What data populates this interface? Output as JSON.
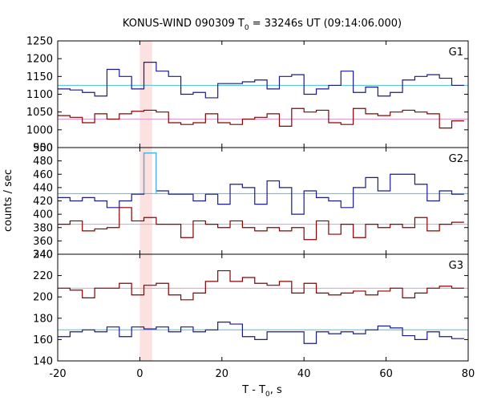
{
  "chart_data": {
    "type": "line",
    "title_main": "KONUS-WIND 090309 T",
    "title_sub": "0",
    "title_rest": " = 33246s UT (09:14:06.000)",
    "xlabel_main": "T - T",
    "xlabel_sub": "0",
    "xlabel_rest": ", s",
    "ylabel": "counts / sec",
    "xlim": [
      -20,
      80
    ],
    "xticks": [
      "-20",
      "0",
      "20",
      "40",
      "60",
      "80"
    ],
    "highlight_band": [
      0,
      3
    ],
    "bin_edges": [
      -20,
      -17,
      -14,
      -11,
      -8,
      -5,
      -2,
      1,
      4,
      7,
      10,
      13,
      16,
      19,
      22,
      25,
      28,
      31,
      34,
      37,
      40,
      43,
      46,
      49,
      52,
      55,
      58,
      61,
      64,
      67,
      70,
      73,
      76,
      79
    ],
    "panels": [
      {
        "label": "G1",
        "ylim": [
          950,
          1250
        ],
        "yticks": [
          "950",
          "1000",
          "1050",
          "1100",
          "1150",
          "1200",
          "1250"
        ],
        "series": [
          {
            "color": "#1a1a8c",
            "values": [
              1115,
              1112,
              1105,
              1095,
              1170,
              1150,
              1115,
              1190,
              1165,
              1150,
              1100,
              1105,
              1090,
              1130,
              1130,
              1135,
              1140,
              1115,
              1150,
              1155,
              1100,
              1115,
              1125,
              1165,
              1105,
              1120,
              1095,
              1105,
              1140,
              1150,
              1155,
              1145,
              1125
            ],
            "fit": 1125,
            "fit_color": "#47c1e0"
          },
          {
            "color": "#8b0000",
            "values": [
              1040,
              1035,
              1020,
              1045,
              1030,
              1045,
              1052,
              1055,
              1050,
              1020,
              1015,
              1020,
              1045,
              1020,
              1015,
              1030,
              1035,
              1045,
              1010,
              1060,
              1050,
              1055,
              1020,
              1015,
              1060,
              1045,
              1040,
              1050,
              1055,
              1050,
              1045,
              1005,
              1025
            ],
            "fit": 1030,
            "fit_color": "#e896d0"
          }
        ]
      },
      {
        "label": "G2",
        "ylim": [
          340,
          500
        ],
        "yticks": [
          "340",
          "360",
          "380",
          "400",
          "420",
          "440",
          "460",
          "480",
          "500"
        ],
        "series": [
          {
            "color": "#1a1a8c",
            "values": [
              425,
              420,
              425,
              420,
              410,
              420,
              430,
              492,
              435,
              430,
              430,
              420,
              430,
              415,
              445,
              440,
              415,
              450,
              440,
              400,
              435,
              425,
              420,
              410,
              440,
              455,
              435,
              460,
              460,
              445,
              420,
              435,
              430
            ],
            "fit": 431,
            "fit_color": "#47c1e0",
            "highlight_bins": [
              7
            ]
          },
          {
            "color": "#8b0000",
            "values": [
              385,
              390,
              375,
              378,
              380,
              410,
              390,
              395,
              385,
              385,
              365,
              390,
              385,
              380,
              390,
              380,
              375,
              380,
              375,
              380,
              362,
              390,
              370,
              385,
              365,
              385,
              380,
              385,
              380,
              395,
              375,
              385,
              388
            ],
            "fit": 385,
            "fit_color": "#e896d0"
          }
        ]
      },
      {
        "label": "G3",
        "ylim": [
          140,
          250
        ],
        "yticks": [
          "140",
          "160",
          "180",
          "200",
          "220",
          "240"
        ],
        "series": [
          {
            "color": "#1a1a8c",
            "values": [
              165,
              170,
              172,
              170,
              175,
              165,
              175,
              173,
              175,
              170,
              175,
              170,
              172,
              180,
              178,
              165,
              162,
              170,
              170,
              170,
              158,
              170,
              168,
              170,
              168,
              172,
              176,
              174,
              166,
              162,
              170,
              165,
              163
            ],
            "fit": 172,
            "fit_color": "#47c1e0"
          },
          {
            "color": "#8b0000",
            "values": [
              215,
              213,
              205,
              215,
              215,
              220,
              208,
              218,
              220,
              208,
              203,
              210,
              222,
              233,
              222,
              226,
              220,
              218,
              222,
              210,
              220,
              210,
              208,
              210,
              212,
              208,
              212,
              215,
              205,
              210,
              215,
              217,
              215
            ],
            "fit": 215,
            "fit_color": "#e896d0"
          }
        ]
      }
    ]
  }
}
